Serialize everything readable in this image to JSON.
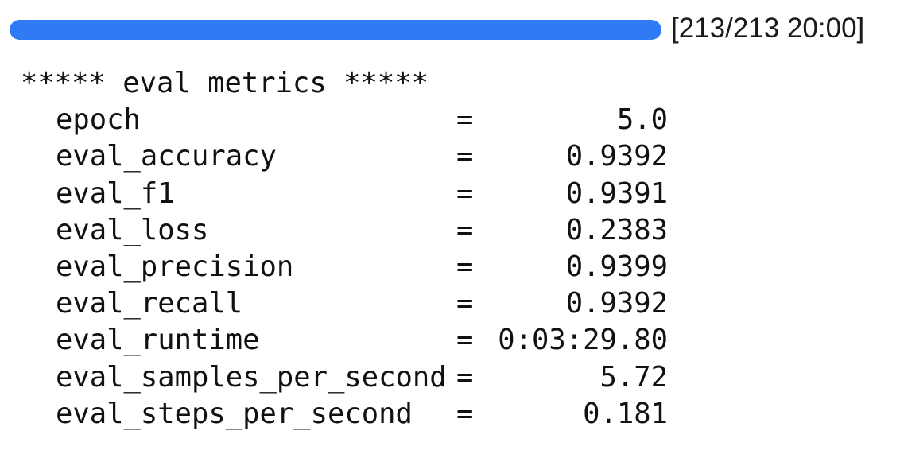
{
  "progress": {
    "fraction": 1.0,
    "status_text": "[213/213 20:00]",
    "fill_color": "#2f7bf5"
  },
  "metrics": {
    "header": "***** eval metrics *****",
    "separator": "=",
    "rows": [
      {
        "name": "epoch",
        "value": "5.0"
      },
      {
        "name": "eval_accuracy",
        "value": "0.9392"
      },
      {
        "name": "eval_f1",
        "value": "0.9391"
      },
      {
        "name": "eval_loss",
        "value": "0.2383"
      },
      {
        "name": "eval_precision",
        "value": "0.9399"
      },
      {
        "name": "eval_recall",
        "value": "0.9392"
      },
      {
        "name": "eval_runtime",
        "value": "0:03:29.80"
      },
      {
        "name": "eval_samples_per_second",
        "value": "5.72"
      },
      {
        "name": "eval_steps_per_second",
        "value": "0.181"
      }
    ]
  }
}
